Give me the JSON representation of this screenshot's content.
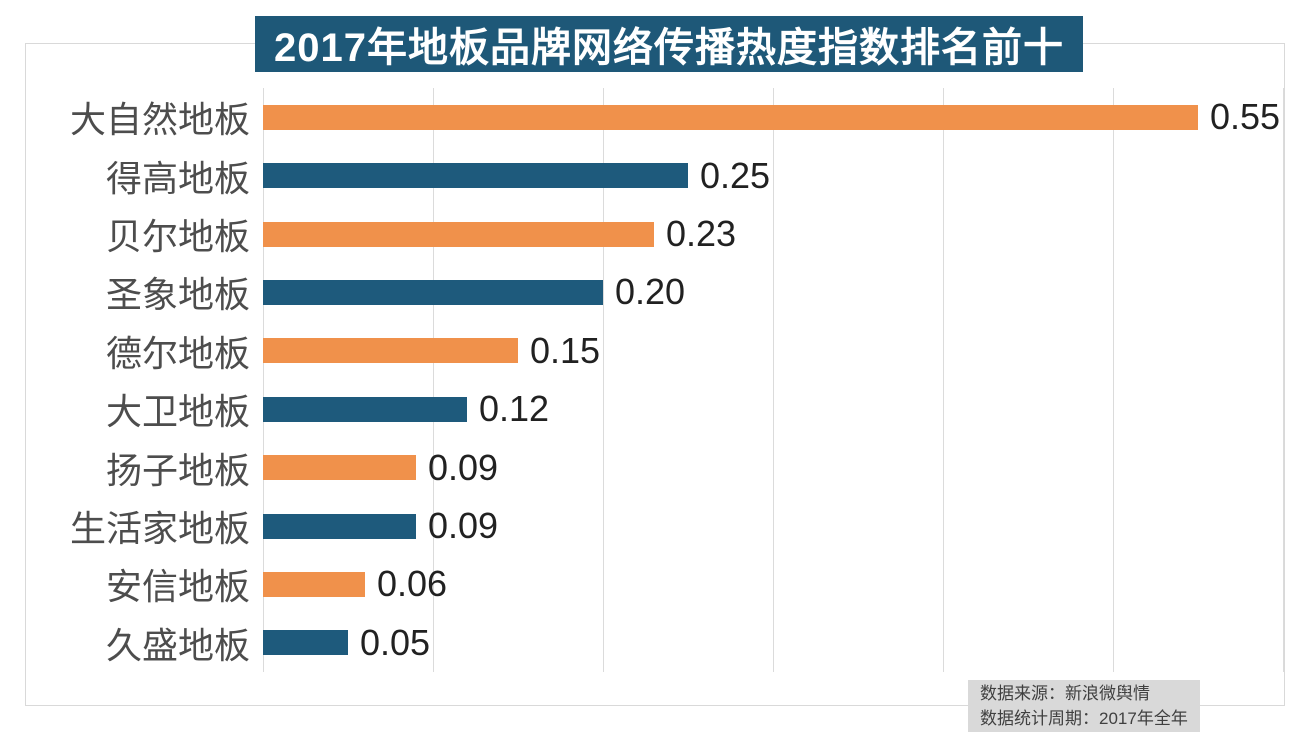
{
  "title": {
    "text": "2017年地板品牌网络传播热度指数排名前十"
  },
  "source_note": {
    "line1": "数据来源：新浪微舆情",
    "line2": "数据统计周期：2017年全年"
  },
  "colors": {
    "title_bg": "#1E5878",
    "bar_orange": "#F0914B",
    "bar_blue": "#1E5A7C",
    "grid": "#DBDBDB",
    "frame_border": "#D9D9D9",
    "category_text": "#4D4D4D",
    "value_text": "#212121",
    "source_bg": "#D9D9D9",
    "source_text": "#404040"
  },
  "chart_data": {
    "type": "bar",
    "orientation": "horizontal",
    "title": "2017年地板品牌网络传播热度指数排名前十",
    "categories": [
      "大自然地板",
      "得高地板",
      "贝尔地板",
      "圣象地板",
      "德尔地板",
      "大卫地板",
      "扬子地板",
      "生活家地板",
      "安信地板",
      "久盛地板"
    ],
    "values": [
      0.55,
      0.25,
      0.23,
      0.2,
      0.15,
      0.12,
      0.09,
      0.09,
      0.06,
      0.05
    ],
    "value_labels": [
      "0.55",
      "0.25",
      "0.23",
      "0.20",
      "0.15",
      "0.12",
      "0.09",
      "0.09",
      "0.06",
      "0.05"
    ],
    "bar_color_pattern": [
      "#F0914B",
      "#1E5A7C"
    ],
    "xlabel": "",
    "ylabel": "",
    "xlim": [
      0,
      0.6
    ],
    "gridline_interval": 0.1,
    "grid": true,
    "legend": "none",
    "value_labels_shown": true,
    "source": [
      "数据来源：新浪微舆情",
      "数据统计周期：2017年全年"
    ]
  }
}
